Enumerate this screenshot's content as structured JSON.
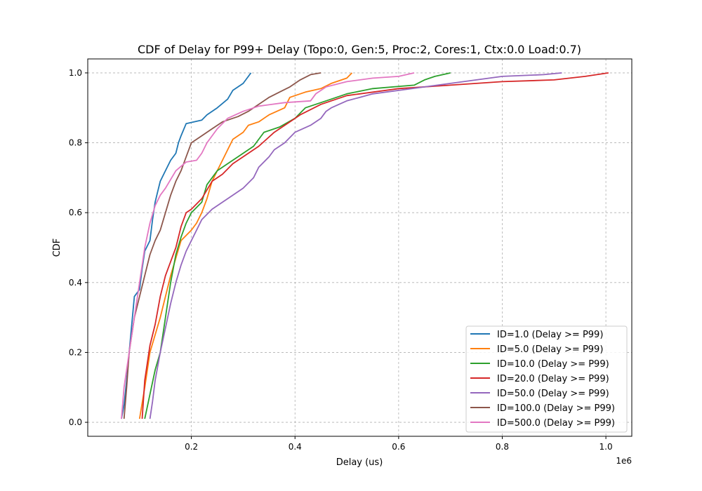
{
  "chart_data": {
    "type": "line",
    "title": "CDF of Delay for P99+ Delay (Topo:0, Gen:5, Proc:2, Cores:1, Ctx:0.0 Load:0.7)",
    "xlabel": "Delay (us)",
    "ylabel": "CDF",
    "x_offset_label": "1e6",
    "xlim": [
      0.0,
      1.05
    ],
    "ylim": [
      -0.04,
      1.04
    ],
    "x_ticks": [
      0.2,
      0.4,
      0.6,
      0.8,
      1.0
    ],
    "x_tick_labels": [
      "0.2",
      "0.4",
      "0.6",
      "0.8",
      "1.0"
    ],
    "y_ticks": [
      0.0,
      0.2,
      0.4,
      0.6,
      0.8,
      1.0
    ],
    "y_tick_labels": [
      "0.0",
      "0.2",
      "0.4",
      "0.6",
      "0.8",
      "1.0"
    ],
    "grid": true,
    "legend_position": "lower-right",
    "series": [
      {
        "name": "ID=1.0 (Delay >= P99)",
        "color": "#1f77b4",
        "points": [
          [
            0.065,
            0.01
          ],
          [
            0.07,
            0.05
          ],
          [
            0.075,
            0.12
          ],
          [
            0.08,
            0.2
          ],
          [
            0.085,
            0.28
          ],
          [
            0.09,
            0.36
          ],
          [
            0.1,
            0.38
          ],
          [
            0.105,
            0.44
          ],
          [
            0.11,
            0.49
          ],
          [
            0.12,
            0.52
          ],
          [
            0.125,
            0.58
          ],
          [
            0.13,
            0.63
          ],
          [
            0.135,
            0.66
          ],
          [
            0.14,
            0.69
          ],
          [
            0.15,
            0.72
          ],
          [
            0.16,
            0.75
          ],
          [
            0.17,
            0.77
          ],
          [
            0.175,
            0.8
          ],
          [
            0.18,
            0.82
          ],
          [
            0.19,
            0.855
          ],
          [
            0.22,
            0.865
          ],
          [
            0.23,
            0.88
          ],
          [
            0.25,
            0.9
          ],
          [
            0.27,
            0.925
          ],
          [
            0.28,
            0.95
          ],
          [
            0.3,
            0.97
          ],
          [
            0.31,
            0.99
          ],
          [
            0.315,
            1.0
          ]
        ]
      },
      {
        "name": "ID=5.0 (Delay >= P99)",
        "color": "#ff7f0e",
        "points": [
          [
            0.1,
            0.01
          ],
          [
            0.11,
            0.1
          ],
          [
            0.12,
            0.2
          ],
          [
            0.14,
            0.3
          ],
          [
            0.15,
            0.36
          ],
          [
            0.16,
            0.42
          ],
          [
            0.17,
            0.47
          ],
          [
            0.18,
            0.52
          ],
          [
            0.2,
            0.55
          ],
          [
            0.21,
            0.57
          ],
          [
            0.22,
            0.6
          ],
          [
            0.23,
            0.64
          ],
          [
            0.24,
            0.69
          ],
          [
            0.25,
            0.72
          ],
          [
            0.26,
            0.75
          ],
          [
            0.27,
            0.78
          ],
          [
            0.28,
            0.81
          ],
          [
            0.3,
            0.83
          ],
          [
            0.31,
            0.85
          ],
          [
            0.33,
            0.86
          ],
          [
            0.35,
            0.88
          ],
          [
            0.38,
            0.9
          ],
          [
            0.39,
            0.93
          ],
          [
            0.42,
            0.945
          ],
          [
            0.45,
            0.955
          ],
          [
            0.47,
            0.97
          ],
          [
            0.5,
            0.985
          ],
          [
            0.51,
            1.0
          ]
        ]
      },
      {
        "name": "ID=10.0 (Delay >= P99)",
        "color": "#2ca02c",
        "points": [
          [
            0.11,
            0.01
          ],
          [
            0.12,
            0.08
          ],
          [
            0.13,
            0.15
          ],
          [
            0.14,
            0.2
          ],
          [
            0.15,
            0.3
          ],
          [
            0.16,
            0.4
          ],
          [
            0.17,
            0.48
          ],
          [
            0.18,
            0.53
          ],
          [
            0.19,
            0.57
          ],
          [
            0.2,
            0.6
          ],
          [
            0.22,
            0.63
          ],
          [
            0.23,
            0.68
          ],
          [
            0.25,
            0.72
          ],
          [
            0.27,
            0.74
          ],
          [
            0.29,
            0.76
          ],
          [
            0.3,
            0.77
          ],
          [
            0.32,
            0.79
          ],
          [
            0.34,
            0.83
          ],
          [
            0.37,
            0.845
          ],
          [
            0.4,
            0.87
          ],
          [
            0.42,
            0.9
          ],
          [
            0.46,
            0.92
          ],
          [
            0.5,
            0.94
          ],
          [
            0.55,
            0.955
          ],
          [
            0.63,
            0.965
          ],
          [
            0.65,
            0.98
          ],
          [
            0.67,
            0.99
          ],
          [
            0.7,
            1.0
          ]
        ]
      },
      {
        "name": "ID=20.0 (Delay >= P99)",
        "color": "#d62728",
        "points": [
          [
            0.105,
            0.01
          ],
          [
            0.11,
            0.12
          ],
          [
            0.12,
            0.22
          ],
          [
            0.13,
            0.28
          ],
          [
            0.14,
            0.36
          ],
          [
            0.15,
            0.42
          ],
          [
            0.16,
            0.46
          ],
          [
            0.17,
            0.5
          ],
          [
            0.18,
            0.56
          ],
          [
            0.19,
            0.6
          ],
          [
            0.2,
            0.61
          ],
          [
            0.22,
            0.64
          ],
          [
            0.24,
            0.69
          ],
          [
            0.26,
            0.71
          ],
          [
            0.28,
            0.74
          ],
          [
            0.3,
            0.76
          ],
          [
            0.33,
            0.79
          ],
          [
            0.36,
            0.83
          ],
          [
            0.39,
            0.86
          ],
          [
            0.41,
            0.88
          ],
          [
            0.45,
            0.91
          ],
          [
            0.5,
            0.935
          ],
          [
            0.6,
            0.955
          ],
          [
            0.7,
            0.965
          ],
          [
            0.8,
            0.975
          ],
          [
            0.9,
            0.98
          ],
          [
            0.96,
            0.99
          ],
          [
            1.005,
            1.0
          ]
        ]
      },
      {
        "name": "ID=50.0 (Delay >= P99)",
        "color": "#9467bd",
        "points": [
          [
            0.12,
            0.01
          ],
          [
            0.125,
            0.06
          ],
          [
            0.13,
            0.12
          ],
          [
            0.14,
            0.2
          ],
          [
            0.15,
            0.27
          ],
          [
            0.16,
            0.34
          ],
          [
            0.17,
            0.4
          ],
          [
            0.18,
            0.45
          ],
          [
            0.19,
            0.49
          ],
          [
            0.2,
            0.52
          ],
          [
            0.21,
            0.55
          ],
          [
            0.22,
            0.58
          ],
          [
            0.24,
            0.61
          ],
          [
            0.26,
            0.63
          ],
          [
            0.28,
            0.65
          ],
          [
            0.3,
            0.67
          ],
          [
            0.32,
            0.7
          ],
          [
            0.33,
            0.73
          ],
          [
            0.35,
            0.76
          ],
          [
            0.36,
            0.78
          ],
          [
            0.38,
            0.8
          ],
          [
            0.4,
            0.83
          ],
          [
            0.43,
            0.85
          ],
          [
            0.45,
            0.87
          ],
          [
            0.46,
            0.89
          ],
          [
            0.47,
            0.9
          ],
          [
            0.5,
            0.92
          ],
          [
            0.55,
            0.94
          ],
          [
            0.65,
            0.96
          ],
          [
            0.7,
            0.97
          ],
          [
            0.75,
            0.98
          ],
          [
            0.8,
            0.99
          ],
          [
            0.88,
            0.995
          ],
          [
            0.915,
            1.0
          ]
        ]
      },
      {
        "name": "ID=100.0 (Delay >= P99)",
        "color": "#8c564b",
        "points": [
          [
            0.07,
            0.01
          ],
          [
            0.075,
            0.1
          ],
          [
            0.08,
            0.2
          ],
          [
            0.09,
            0.3
          ],
          [
            0.1,
            0.36
          ],
          [
            0.11,
            0.42
          ],
          [
            0.12,
            0.48
          ],
          [
            0.13,
            0.52
          ],
          [
            0.14,
            0.55
          ],
          [
            0.15,
            0.6
          ],
          [
            0.16,
            0.65
          ],
          [
            0.17,
            0.69
          ],
          [
            0.18,
            0.72
          ],
          [
            0.19,
            0.76
          ],
          [
            0.2,
            0.8
          ],
          [
            0.22,
            0.82
          ],
          [
            0.24,
            0.84
          ],
          [
            0.26,
            0.86
          ],
          [
            0.29,
            0.875
          ],
          [
            0.31,
            0.89
          ],
          [
            0.33,
            0.91
          ],
          [
            0.35,
            0.93
          ],
          [
            0.37,
            0.945
          ],
          [
            0.39,
            0.96
          ],
          [
            0.41,
            0.98
          ],
          [
            0.43,
            0.995
          ],
          [
            0.45,
            1.0
          ]
        ]
      },
      {
        "name": "ID=500.0 (Delay >= P99)",
        "color": "#e377c2",
        "points": [
          [
            0.065,
            0.01
          ],
          [
            0.07,
            0.1
          ],
          [
            0.08,
            0.2
          ],
          [
            0.09,
            0.3
          ],
          [
            0.1,
            0.4
          ],
          [
            0.11,
            0.5
          ],
          [
            0.12,
            0.57
          ],
          [
            0.13,
            0.62
          ],
          [
            0.14,
            0.65
          ],
          [
            0.15,
            0.67
          ],
          [
            0.17,
            0.72
          ],
          [
            0.19,
            0.745
          ],
          [
            0.21,
            0.75
          ],
          [
            0.22,
            0.77
          ],
          [
            0.23,
            0.8
          ],
          [
            0.25,
            0.84
          ],
          [
            0.27,
            0.87
          ],
          [
            0.3,
            0.89
          ],
          [
            0.33,
            0.905
          ],
          [
            0.38,
            0.915
          ],
          [
            0.43,
            0.92
          ],
          [
            0.44,
            0.94
          ],
          [
            0.46,
            0.96
          ],
          [
            0.5,
            0.975
          ],
          [
            0.55,
            0.985
          ],
          [
            0.6,
            0.99
          ],
          [
            0.63,
            1.0
          ]
        ]
      }
    ]
  }
}
